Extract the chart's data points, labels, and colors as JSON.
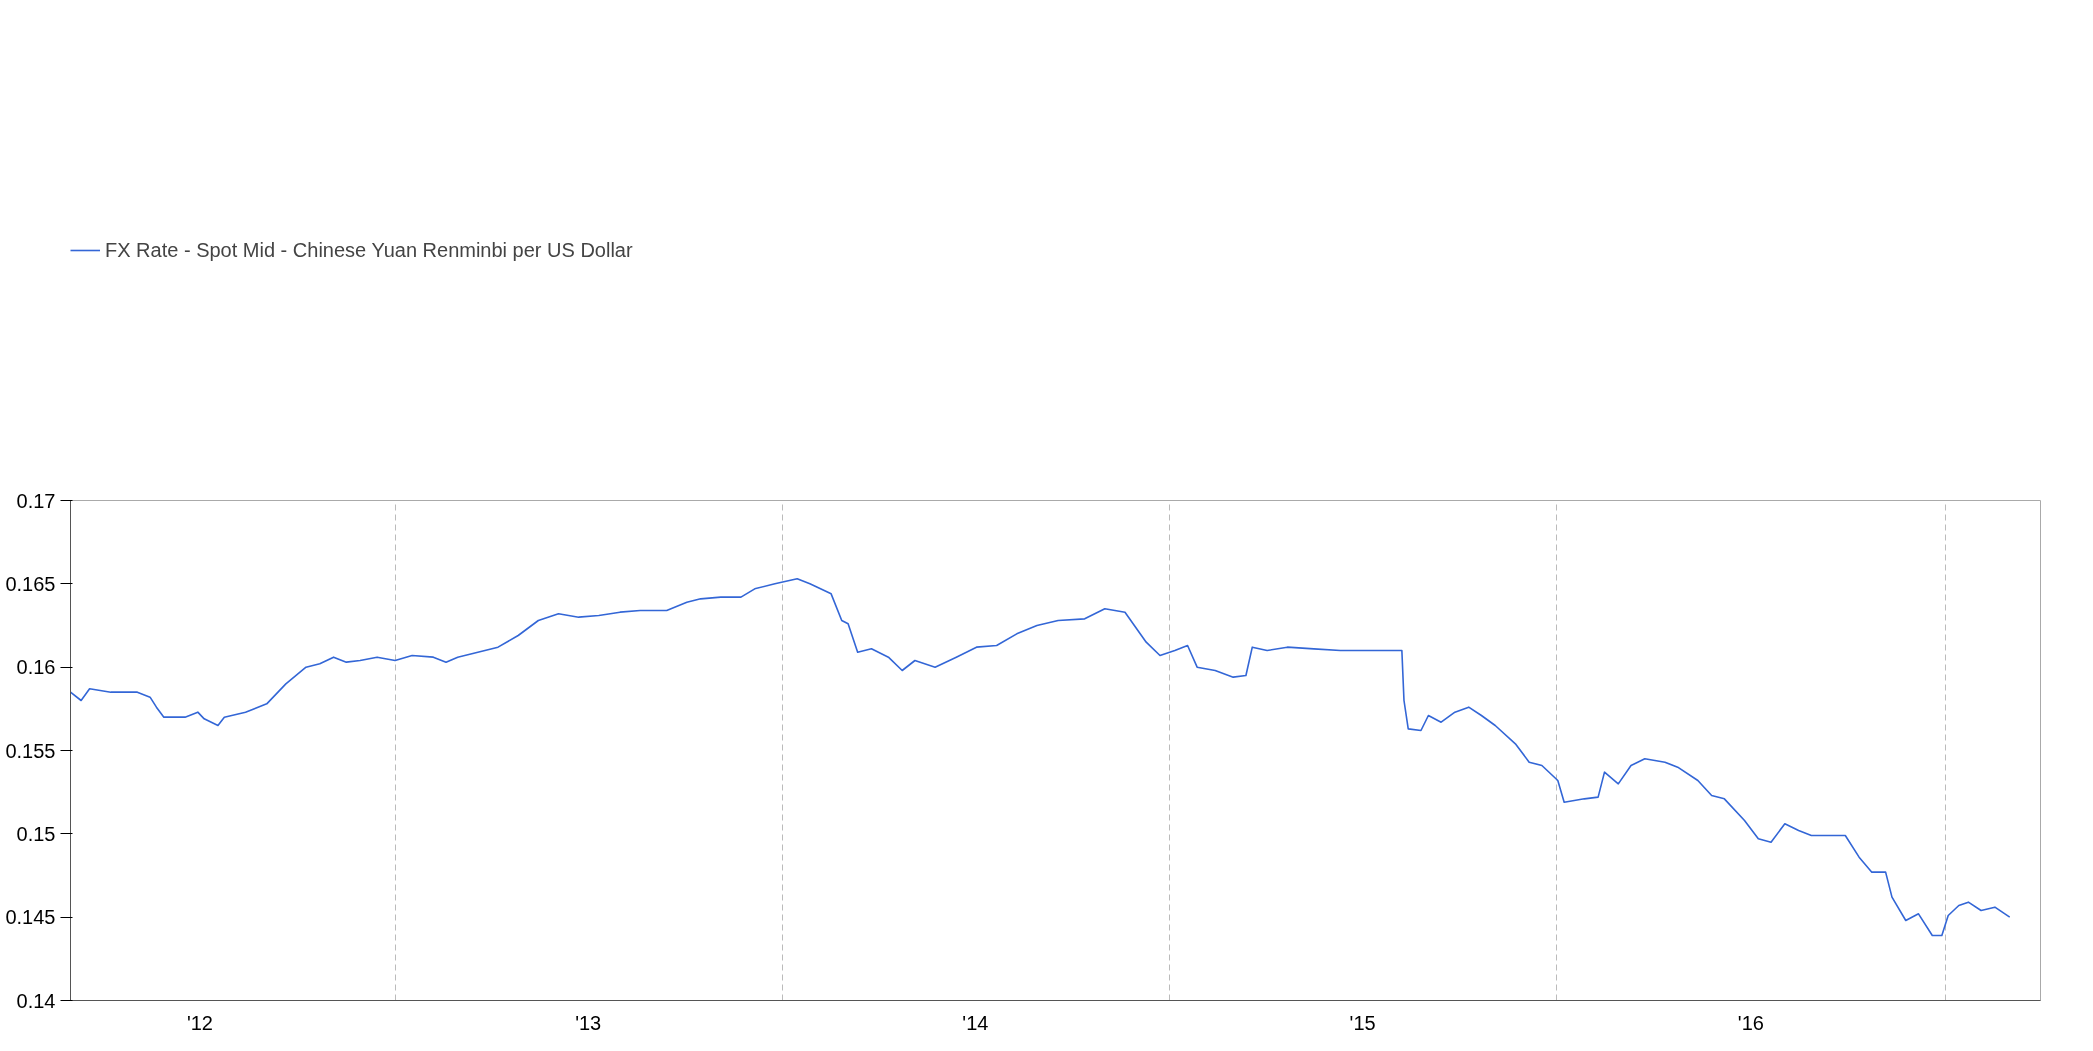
{
  "chart_data": {
    "type": "line",
    "series": [
      {
        "name": "FX Rate - Spot Mid - Chinese Yuan Renminbi per US Dollar",
        "color": "#3366d6",
        "x": [
          "2012-03-01",
          "2012-03-11",
          "2012-03-19",
          "2012-04-08",
          "2012-05-03",
          "2012-05-15",
          "2012-05-21",
          "2012-05-28",
          "2012-06-17",
          "2012-06-29",
          "2012-07-05",
          "2012-07-18",
          "2012-07-24",
          "2012-08-13",
          "2012-09-02",
          "2012-09-20",
          "2012-10-09",
          "2012-10-22",
          "2012-11-04",
          "2012-11-16",
          "2012-11-29",
          "2012-12-15",
          "2013-01-01",
          "2013-01-17",
          "2013-02-06",
          "2013-02-18",
          "2013-03-01",
          "2013-03-20",
          "2013-04-08",
          "2013-04-27",
          "2013-05-16",
          "2013-06-04",
          "2013-06-23",
          "2013-07-12",
          "2013-08-01",
          "2013-08-20",
          "2013-09-14",
          "2013-10-03",
          "2013-10-16",
          "2013-11-04",
          "2013-11-23",
          "2013-12-06",
          "2013-12-25",
          "2014-01-15",
          "2014-01-27",
          "2014-02-16",
          "2014-02-26",
          "2014-03-04",
          "2014-03-13",
          "2014-03-26",
          "2014-04-11",
          "2014-04-24",
          "2014-05-06",
          "2014-05-25",
          "2014-06-14",
          "2014-07-03",
          "2014-07-22",
          "2014-08-10",
          "2014-08-29",
          "2014-09-18",
          "2014-10-13",
          "2014-11-01",
          "2014-11-20",
          "2014-12-10",
          "2014-12-23",
          "2015-01-06",
          "2015-01-18",
          "2015-01-27",
          "2015-02-13",
          "2015-03-02",
          "2015-03-14",
          "2015-03-20",
          "2015-04-03",
          "2015-04-22",
          "2015-05-17",
          "2015-06-11",
          "2015-08-08",
          "2015-08-10",
          "2015-08-14",
          "2015-08-26",
          "2015-09-02",
          "2015-09-14",
          "2015-09-27",
          "2015-10-10",
          "2015-10-22",
          "2015-11-04",
          "2015-11-23",
          "2015-12-06",
          "2015-12-18",
          "2016-01-02",
          "2016-01-08",
          "2016-01-27",
          "2016-02-09",
          "2016-02-15",
          "2016-02-28",
          "2016-03-11",
          "2016-03-24",
          "2016-04-12",
          "2016-04-24",
          "2016-05-13",
          "2016-05-26",
          "2016-06-07",
          "2016-06-26",
          "2016-07-09",
          "2016-07-21",
          "2016-08-03",
          "2016-08-16",
          "2016-08-28",
          "2016-09-10",
          "2016-09-29",
          "2016-10-12",
          "2016-10-24",
          "2016-11-06",
          "2016-11-12",
          "2016-11-25",
          "2016-12-07",
          "2016-12-20",
          "2016-12-29",
          "2017-01-04",
          "2017-01-14",
          "2017-01-23",
          "2017-02-04",
          "2017-02-17",
          "2017-03-03"
        ],
        "values": [
          0.1585,
          0.158,
          0.1587,
          0.1585,
          0.1585,
          0.1582,
          0.1576,
          0.157,
          0.157,
          0.1573,
          0.1569,
          0.1565,
          0.157,
          0.1573,
          0.1578,
          0.159,
          0.16,
          0.1602,
          0.1606,
          0.1603,
          0.1604,
          0.1606,
          0.1604,
          0.1607,
          0.1606,
          0.1603,
          0.1606,
          0.1609,
          0.1612,
          0.1619,
          0.1628,
          0.1632,
          0.163,
          0.1631,
          0.1633,
          0.1634,
          0.1634,
          0.1639,
          0.1641,
          0.1642,
          0.1642,
          0.1647,
          0.165,
          0.1653,
          0.165,
          0.1644,
          0.1628,
          0.1626,
          0.1609,
          0.1611,
          0.1606,
          0.1598,
          0.1604,
          0.16,
          0.1606,
          0.1612,
          0.1613,
          0.162,
          0.1625,
          0.1628,
          0.1629,
          0.1635,
          0.1633,
          0.1615,
          0.1607,
          0.161,
          0.1613,
          0.16,
          0.1598,
          0.1594,
          0.1595,
          0.1612,
          0.161,
          0.1612,
          0.1611,
          0.161,
          0.161,
          0.158,
          0.1563,
          0.1562,
          0.1571,
          0.1567,
          0.1573,
          0.1576,
          0.1571,
          0.1565,
          0.1554,
          0.1543,
          0.1541,
          0.1532,
          0.1519,
          0.1521,
          0.1522,
          0.1537,
          0.153,
          0.1541,
          0.1545,
          0.1543,
          0.154,
          0.1532,
          0.1523,
          0.1521,
          0.1508,
          0.1497,
          0.1495,
          0.1506,
          0.1502,
          0.1499,
          0.1499,
          0.1499,
          0.1486,
          0.1477,
          0.1477,
          0.1462,
          0.1448,
          0.1452,
          0.1439,
          0.1439,
          0.1451,
          0.1457,
          0.1459,
          0.1454,
          0.1456,
          0.145
        ]
      }
    ],
    "xlim": [
      "2012-03-01",
      "2017-04-01"
    ],
    "xticks": [
      {
        "value": "2012-07-01",
        "label": "'12"
      },
      {
        "value": "2013-01-01",
        "label": null
      },
      {
        "value": "2013-07-02",
        "label": "'13"
      },
      {
        "value": "2014-01-01",
        "label": null
      },
      {
        "value": "2014-07-02",
        "label": "'14"
      },
      {
        "value": "2015-01-01",
        "label": null
      },
      {
        "value": "2015-07-02",
        "label": "'15"
      },
      {
        "value": "2016-01-01",
        "label": null
      },
      {
        "value": "2016-07-02",
        "label": "'16"
      },
      {
        "value": "2017-01-01",
        "label": null
      }
    ],
    "ylim": [
      0.14,
      0.17
    ],
    "yticks": [
      0.14,
      0.145,
      0.15,
      0.155,
      0.16,
      0.165,
      0.17
    ],
    "grid": "x",
    "legend": "top left",
    "marker": "none",
    "line_style": "solid"
  }
}
